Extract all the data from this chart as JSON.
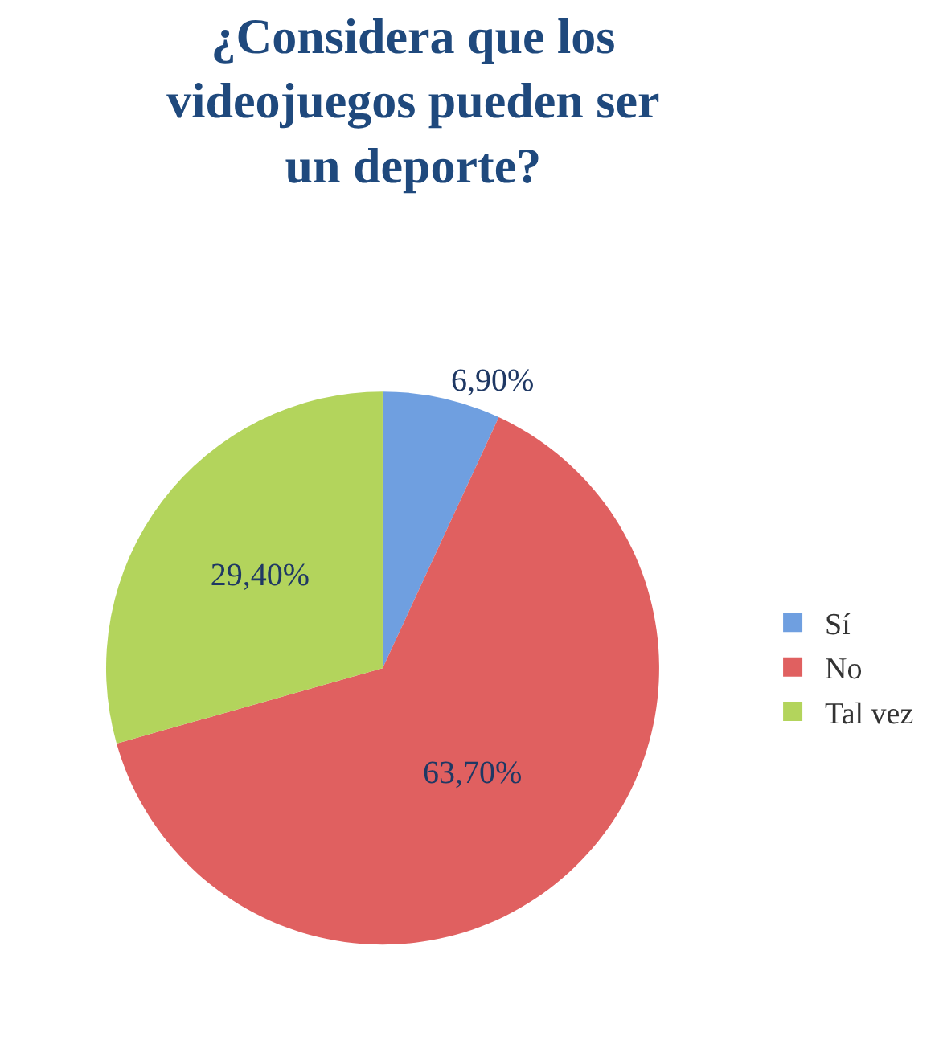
{
  "chart_data": {
    "type": "pie",
    "title": "¿Considera que los\nvideojuegos pueden ser\nun deporte?",
    "categories": [
      "Sí",
      "No",
      "Tal vez"
    ],
    "values": [
      6.9,
      63.7,
      29.4
    ],
    "value_labels": [
      "6,90%",
      "63,70%",
      "29,40%"
    ],
    "colors": [
      "#6f9fe0",
      "#e06060",
      "#b3d45c"
    ],
    "legend": "right"
  }
}
